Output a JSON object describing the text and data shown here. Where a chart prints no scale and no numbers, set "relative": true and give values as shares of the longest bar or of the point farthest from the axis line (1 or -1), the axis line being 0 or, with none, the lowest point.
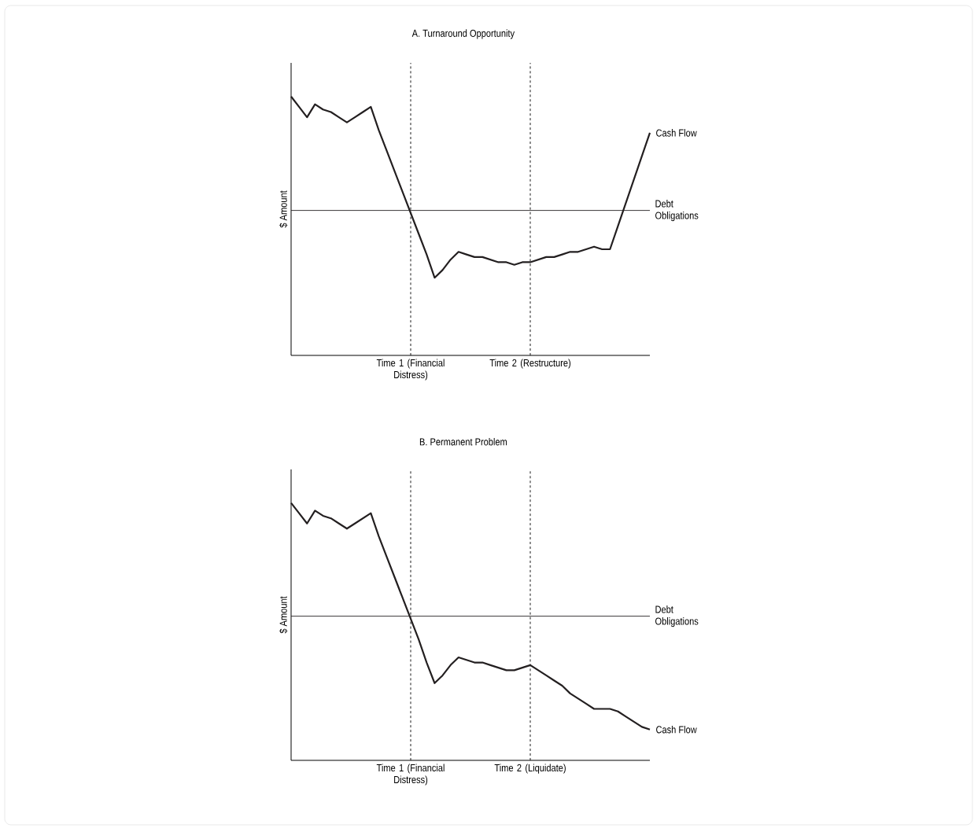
{
  "chart_data": [
    {
      "type": "line",
      "title": "A. Turnaround Opportunity",
      "ylabel": "$ Amount",
      "relative": true,
      "tick_labels": "x",
      "marker": "none",
      "line_style": "solid",
      "grid": "x",
      "categories": [
        null,
        null,
        null,
        null,
        null,
        null,
        null,
        null,
        null,
        null,
        null,
        null,
        null,
        null,
        null,
        "Time 1 (Financial Distress)",
        null,
        null,
        null,
        null,
        null,
        null,
        null,
        null,
        null,
        null,
        null,
        null,
        null,
        null,
        "Time 2 (Restructure)",
        null,
        null,
        null,
        null,
        null,
        null,
        null,
        null,
        null,
        null,
        null,
        null,
        null,
        null,
        null
      ],
      "series": [
        {
          "name": "Cash Flow",
          "color": "#231f20",
          "values": [
            1,
            0.96,
            0.92,
            0.97,
            0.95,
            0.94,
            0.92,
            0.9,
            0.92,
            0.94,
            0.96,
            0.87,
            0.79,
            0.71,
            0.63,
            0.55,
            0.47,
            0.39,
            0.3,
            0.33,
            0.37,
            0.4,
            0.39,
            0.38,
            0.38,
            0.37,
            0.36,
            0.36,
            0.35,
            0.36,
            0.36,
            0.37,
            0.38,
            0.38,
            0.39,
            0.4,
            0.4,
            0.41,
            0.42,
            0.41,
            0.41,
            0.5,
            0.59,
            0.68,
            0.77,
            0.86
          ]
        }
      ],
      "ref_lines": [
        {
          "axis": "y",
          "value": 0.56,
          "label": "Debt Obligations",
          "color": "#231f20",
          "line_style": "solid"
        }
      ]
    },
    {
      "type": "line",
      "title": "B. Permanent Problem",
      "ylabel": "$ Amount",
      "relative": true,
      "tick_labels": "x",
      "marker": "none",
      "line_style": "solid",
      "grid": "x",
      "categories": [
        null,
        null,
        null,
        null,
        null,
        null,
        null,
        null,
        null,
        null,
        null,
        null,
        null,
        null,
        null,
        "Time 1 (Financial Distress)",
        null,
        null,
        null,
        null,
        null,
        null,
        null,
        null,
        null,
        null,
        null,
        null,
        null,
        null,
        "Time 2 (Liquidate)",
        null,
        null,
        null,
        null,
        null,
        null,
        null,
        null,
        null,
        null,
        null,
        null,
        null,
        null,
        null
      ],
      "series": [
        {
          "name": "Cash Flow",
          "color": "#231f20",
          "values": [
            1,
            0.96,
            0.92,
            0.97,
            0.95,
            0.94,
            0.92,
            0.9,
            0.92,
            0.94,
            0.96,
            0.87,
            0.79,
            0.71,
            0.63,
            0.55,
            0.47,
            0.38,
            0.3,
            0.33,
            0.37,
            0.4,
            0.39,
            0.38,
            0.38,
            0.37,
            0.36,
            0.35,
            0.35,
            0.36,
            0.37,
            0.35,
            0.33,
            0.31,
            0.29,
            0.26,
            0.24,
            0.22,
            0.2,
            0.2,
            0.2,
            0.19,
            0.17,
            0.15,
            0.13,
            0.12
          ]
        }
      ],
      "ref_lines": [
        {
          "axis": "y",
          "value": 0.56,
          "label": "Debt Obligations",
          "color": "#231f20",
          "line_style": "solid"
        }
      ]
    }
  ]
}
